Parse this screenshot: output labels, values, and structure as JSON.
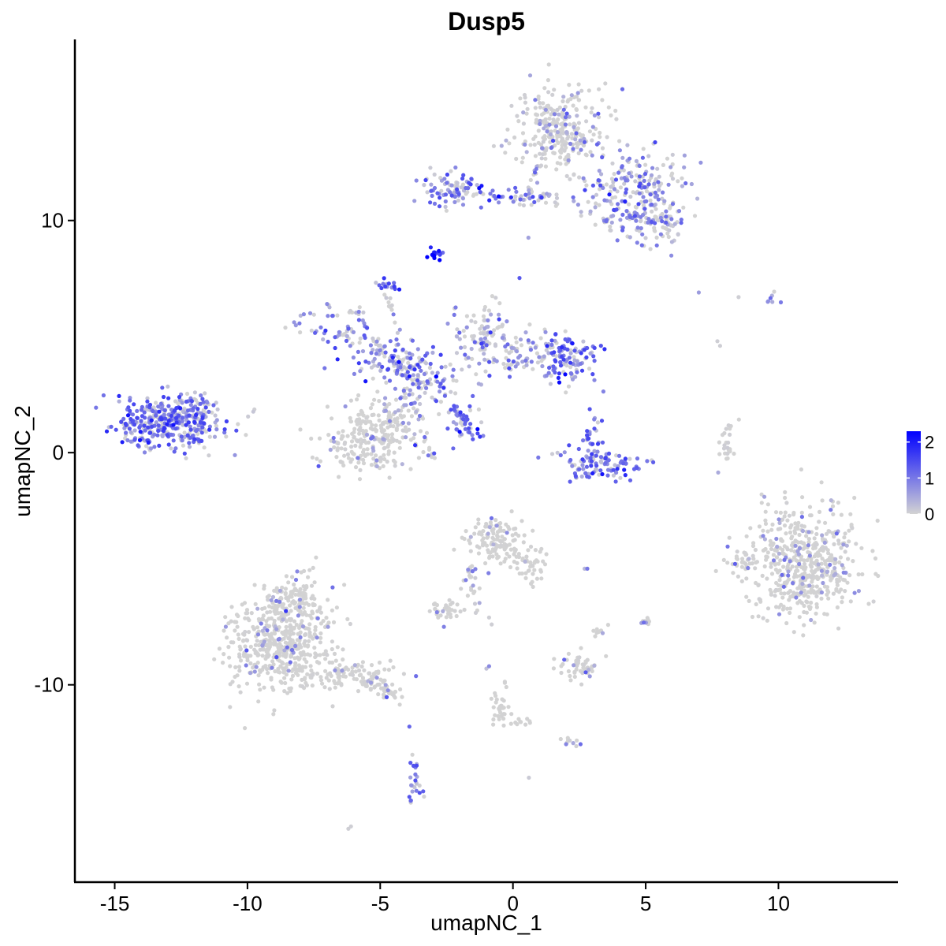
{
  "chart_data": {
    "type": "scatter",
    "title": "Dusp5",
    "xlabel": "umapNC_1",
    "ylabel": "umapNC_2",
    "xlim": [
      -16.5,
      14.5
    ],
    "ylim": [
      -18.5,
      17.8
    ],
    "x_ticks": [
      -15,
      -10,
      -5,
      0,
      5,
      10
    ],
    "x_tick_labels": [
      "-15",
      "-10",
      "-5",
      "0",
      "5",
      "10"
    ],
    "y_ticks": [
      -10,
      0,
      10
    ],
    "y_tick_labels": [
      "-10",
      "0",
      "10"
    ],
    "grid": false,
    "legend": {
      "position": "right",
      "type": "colorbar",
      "ticks": [
        0,
        1,
        2
      ],
      "tick_labels": [
        "0",
        "1",
        "2"
      ],
      "low_color": "#d3d3d3",
      "high_color": "#0000ff",
      "max": 2.3
    },
    "clusters": [
      {
        "cx": -13,
        "cy": 1.3,
        "sx": 1.0,
        "sy": 0.6,
        "n": 380,
        "expr": 0.75
      },
      {
        "cx": -11.8,
        "cy": 1.8,
        "sx": 0.4,
        "sy": 0.5,
        "n": 40,
        "expr": 0.6
      },
      {
        "cx": -1.5,
        "cy": 14.2,
        "sx": 0.0,
        "sy": 0.0,
        "n": 0,
        "expr": 0
      },
      {
        "cx": 1.8,
        "cy": 13.8,
        "sx": 0.9,
        "sy": 1.0,
        "n": 260,
        "expr": 0.2
      },
      {
        "cx": 4.5,
        "cy": 11.5,
        "sx": 1.0,
        "sy": 0.8,
        "n": 200,
        "expr": 0.55
      },
      {
        "cx": 5.3,
        "cy": 9.8,
        "sx": 0.6,
        "sy": 0.5,
        "n": 80,
        "expr": 0.5
      },
      {
        "cx": -2.3,
        "cy": 11.3,
        "sx": 0.6,
        "sy": 0.4,
        "n": 90,
        "expr": 0.7
      },
      {
        "cx": 0.5,
        "cy": 11.0,
        "sx": 1.2,
        "sy": 0.2,
        "n": 60,
        "expr": 0.65
      },
      {
        "cx": -2.9,
        "cy": 8.6,
        "sx": 0.15,
        "sy": 0.15,
        "n": 15,
        "expr": 1.6
      },
      {
        "cx": -4.7,
        "cy": 7.3,
        "sx": 0.2,
        "sy": 0.2,
        "n": 15,
        "expr": 0.9
      },
      {
        "cx": -6.5,
        "cy": 5.4,
        "sx": 0.7,
        "sy": 0.6,
        "n": 70,
        "expr": 0.5
      },
      {
        "cx": -4.5,
        "cy": 4.0,
        "sx": 0.8,
        "sy": 0.4,
        "n": 90,
        "expr": 0.8
      },
      {
        "cx": -3.3,
        "cy": 3.0,
        "sx": 0.7,
        "sy": 0.7,
        "n": 100,
        "expr": 0.6
      },
      {
        "cx": -1.2,
        "cy": 5.0,
        "sx": 0.6,
        "sy": 0.8,
        "n": 90,
        "expr": 0.4
      },
      {
        "cx": 2.0,
        "cy": 4.0,
        "sx": 0.6,
        "sy": 0.6,
        "n": 110,
        "expr": 0.8
      },
      {
        "cx": 0.3,
        "cy": 4.4,
        "sx": 0.9,
        "sy": 0.5,
        "n": 80,
        "expr": 0.55
      },
      {
        "cx": -5.5,
        "cy": 0.6,
        "sx": 0.9,
        "sy": 0.8,
        "n": 220,
        "expr": 0.1
      },
      {
        "cx": -4.5,
        "cy": 1.6,
        "sx": 0.4,
        "sy": 0.6,
        "n": 50,
        "expr": 0.2
      },
      {
        "cx": -1.8,
        "cy": 1.2,
        "sx": 0.35,
        "sy": 0.35,
        "n": 30,
        "expr": 0.8
      },
      {
        "cx": 3.2,
        "cy": -0.5,
        "sx": 0.8,
        "sy": 0.35,
        "n": 100,
        "expr": 0.85
      },
      {
        "cx": 3.0,
        "cy": 0.6,
        "sx": 0.25,
        "sy": 0.5,
        "n": 30,
        "expr": 0.8
      },
      {
        "cx": 8.0,
        "cy": 0.3,
        "sx": 0.2,
        "sy": 0.5,
        "n": 25,
        "expr": 0.3
      },
      {
        "cx": 11.0,
        "cy": -4.7,
        "sx": 1.0,
        "sy": 1.2,
        "n": 520,
        "expr": 0.12
      },
      {
        "cx": 8.6,
        "cy": -4.7,
        "sx": 0.4,
        "sy": 0.3,
        "n": 30,
        "expr": 0.1
      },
      {
        "cx": -0.6,
        "cy": -3.8,
        "sx": 0.55,
        "sy": 0.55,
        "n": 110,
        "expr": 0.08
      },
      {
        "cx": 0.8,
        "cy": -4.8,
        "sx": 0.4,
        "sy": 0.5,
        "n": 35,
        "expr": 0.05
      },
      {
        "cx": -1.5,
        "cy": -5.6,
        "sx": 0.25,
        "sy": 0.5,
        "n": 15,
        "expr": 0.3
      },
      {
        "cx": -2.6,
        "cy": -6.8,
        "sx": 0.3,
        "sy": 0.2,
        "n": 35,
        "expr": 0.08
      },
      {
        "cx": 2.5,
        "cy": -9.2,
        "sx": 0.4,
        "sy": 0.35,
        "n": 50,
        "expr": 0.15
      },
      {
        "cx": 3.3,
        "cy": -7.7,
        "sx": 0.15,
        "sy": 0.15,
        "n": 10,
        "expr": 0.05
      },
      {
        "cx": 5.0,
        "cy": -7.3,
        "sx": 0.15,
        "sy": 0.15,
        "n": 10,
        "expr": 0.1
      },
      {
        "cx": -8.7,
        "cy": -8.3,
        "sx": 1.0,
        "sy": 1.0,
        "n": 520,
        "expr": 0.1
      },
      {
        "cx": -8.2,
        "cy": -6.2,
        "sx": 0.6,
        "sy": 0.5,
        "n": 90,
        "expr": 0.1
      },
      {
        "cx": -6.0,
        "cy": -9.5,
        "sx": 0.8,
        "sy": 0.35,
        "n": 70,
        "expr": 0.1
      },
      {
        "cx": -4.8,
        "cy": -10.3,
        "sx": 0.3,
        "sy": 0.2,
        "n": 20,
        "expr": 0.1
      },
      {
        "cx": -3.7,
        "cy": -14.5,
        "sx": 0.15,
        "sy": 0.5,
        "n": 25,
        "expr": 0.75
      },
      {
        "cx": -0.4,
        "cy": -11.0,
        "sx": 0.2,
        "sy": 0.5,
        "n": 20,
        "expr": 0.05
      },
      {
        "cx": 0.4,
        "cy": -11.6,
        "sx": 0.3,
        "sy": 0.15,
        "n": 10,
        "expr": 0.05
      },
      {
        "cx": 2.3,
        "cy": -12.5,
        "sx": 0.25,
        "sy": 0.15,
        "n": 10,
        "expr": 0.2
      },
      {
        "cx": 9.8,
        "cy": 6.7,
        "sx": 0.2,
        "sy": 0.2,
        "n": 6,
        "expr": 0.7
      }
    ],
    "lines": [
      {
        "x1": -2.3,
        "y1": 2.0,
        "x2": -1.3,
        "y2": 0.7,
        "n": 30,
        "expr": 0.8
      },
      {
        "x1": -4.8,
        "y1": 6.9,
        "x2": -3.8,
        "y2": 3.5,
        "n": 18,
        "expr": 0.5
      },
      {
        "x1": -4.0,
        "y1": 2.8,
        "x2": -3.0,
        "y2": -0.3,
        "n": 20,
        "expr": 0.4
      },
      {
        "x1": 0.6,
        "y1": 11.2,
        "x2": 1.6,
        "y2": 14.8,
        "n": 40,
        "expr": 0.3
      },
      {
        "x1": -1.5,
        "y1": -5.0,
        "x2": -1.7,
        "y2": -6.2,
        "n": 10,
        "expr": 0.3
      },
      {
        "x1": -0.6,
        "y1": -10.3,
        "x2": -0.4,
        "y2": -11.6,
        "n": 12,
        "expr": 0.05
      },
      {
        "x1": 3.4,
        "y1": 10.0,
        "x2": 4.6,
        "y2": 10.2,
        "n": 14,
        "expr": 0.5
      },
      {
        "x1": -0.9,
        "y1": -3.6,
        "x2": 1.0,
        "y2": -5.2,
        "n": 20,
        "expr": 0.1
      },
      {
        "x1": -6.8,
        "y1": -9.3,
        "x2": -4.5,
        "y2": -10.4,
        "n": 40,
        "expr": 0.1
      }
    ],
    "points": [
      {
        "x": 7.0,
        "y": 6.9,
        "expr": 0.6
      },
      {
        "x": 8.5,
        "y": 6.7,
        "expr": 0.05
      },
      {
        "x": 7.7,
        "y": 4.8,
        "expr": 0.05
      },
      {
        "x": 7.8,
        "y": 4.6,
        "expr": 0.05
      },
      {
        "x": 9.6,
        "y": 6.5,
        "expr": 0.7
      },
      {
        "x": -3.9,
        "y": -11.8,
        "expr": 1.2
      },
      {
        "x": -6.2,
        "y": -16.2,
        "expr": 0.05
      },
      {
        "x": -6.1,
        "y": -16.1,
        "expr": 0.05
      },
      {
        "x": 0.6,
        "y": -14.0,
        "expr": 0.1
      },
      {
        "x": 2.8,
        "y": -5.0,
        "expr": 1.0
      },
      {
        "x": 2.7,
        "y": -5.0,
        "expr": 0.3
      },
      {
        "x": -1.0,
        "y": -9.3,
        "expr": 0.2
      },
      {
        "x": -0.9,
        "y": -9.2,
        "expr": 0.8
      },
      {
        "x": -0.8,
        "y": -7.4,
        "expr": 0.05
      },
      {
        "x": -0.9,
        "y": -7.1,
        "expr": 0.05
      },
      {
        "x": -1.4,
        "y": -6.9,
        "expr": 0.05
      },
      {
        "x": -2.6,
        "y": -7.5,
        "expr": 0.9
      },
      {
        "x": 3.2,
        "y": 1.3,
        "expr": 0.05
      },
      {
        "x": -8.0,
        "y": 5.9,
        "expr": 0.3
      }
    ]
  }
}
